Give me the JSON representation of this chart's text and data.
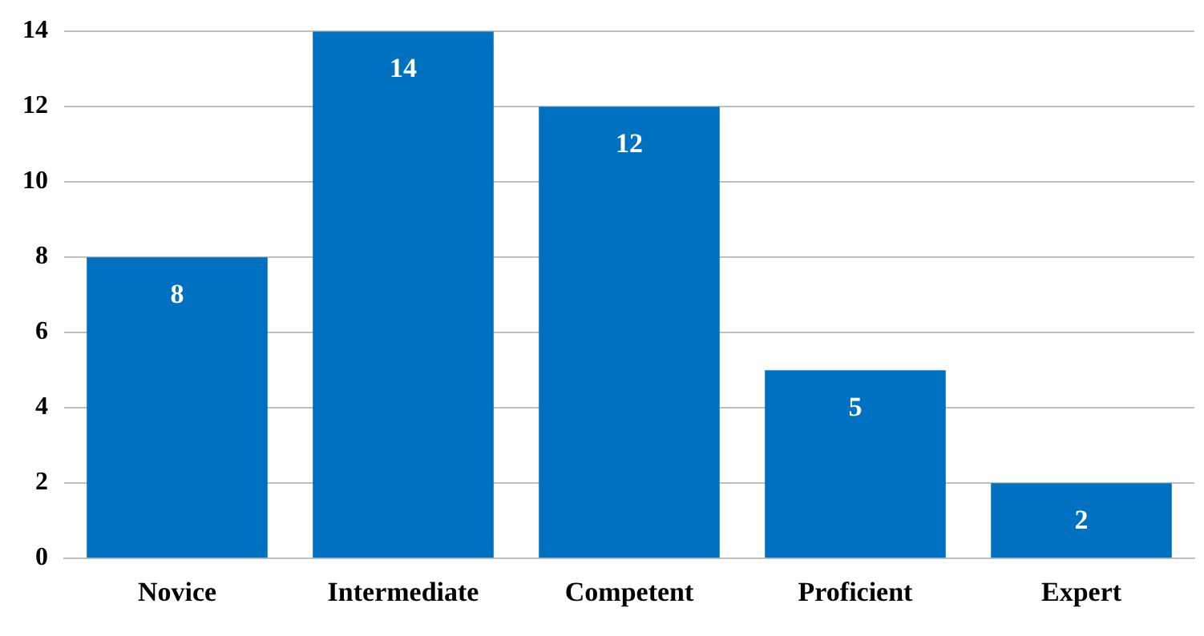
{
  "chart_data": {
    "type": "bar",
    "categories": [
      "Novice",
      "Intermediate",
      "Competent",
      "Proficient",
      "Expert"
    ],
    "values": [
      8,
      14,
      12,
      5,
      2
    ],
    "color": "#0070c0",
    "ylim": [
      0,
      14
    ],
    "yticks": [
      0,
      2,
      4,
      6,
      8,
      10,
      12,
      14
    ],
    "grid": "y",
    "data_labels": true
  }
}
